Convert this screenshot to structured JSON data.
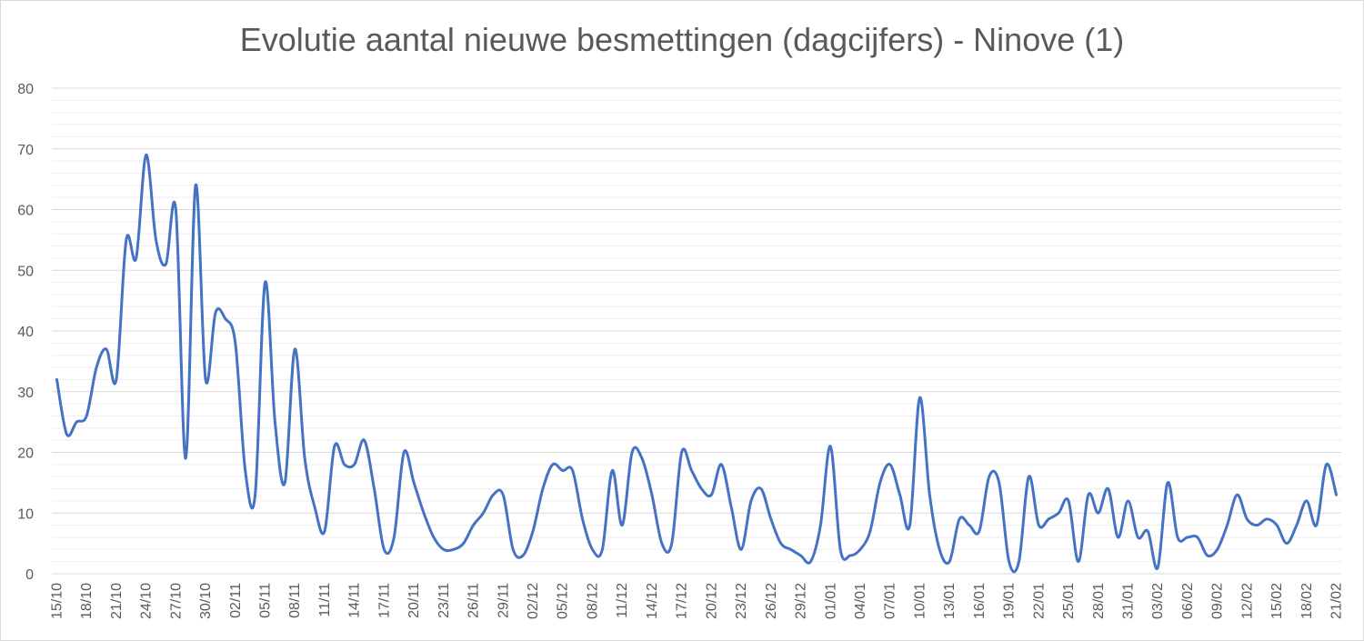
{
  "chart_data": {
    "type": "line",
    "title": "Evolutie aantal nieuwe besmettingen (dagcijfers) - Ninove (1)",
    "xlabel": "",
    "ylabel": "",
    "ylim": [
      0,
      80
    ],
    "yticks": [
      0,
      10,
      20,
      30,
      40,
      50,
      60,
      70,
      80
    ],
    "grid": true,
    "legend": "none",
    "line_color": "#4472c4",
    "x_tick_labels": [
      "15/10",
      "18/10",
      "21/10",
      "24/10",
      "27/10",
      "30/10",
      "02/11",
      "05/11",
      "08/11",
      "11/11",
      "14/11",
      "17/11",
      "20/11",
      "23/11",
      "26/11",
      "29/11",
      "02/12",
      "05/12",
      "08/12",
      "11/12",
      "14/12",
      "17/12",
      "20/12",
      "23/12",
      "26/12",
      "29/12",
      "01/01",
      "04/01",
      "07/01",
      "10/01",
      "13/01",
      "16/01",
      "19/01",
      "22/01",
      "25/01",
      "28/01",
      "31/01",
      "03/02",
      "06/02",
      "09/02",
      "12/02",
      "15/02",
      "18/02",
      "21/02"
    ],
    "series": [
      {
        "values": [
          32,
          23,
          25,
          26,
          34,
          37,
          32,
          55,
          52,
          69,
          55,
          51,
          60,
          19,
          64,
          32,
          43,
          42,
          38,
          17,
          13,
          48,
          25,
          15,
          37,
          19,
          11,
          7,
          21,
          18,
          18,
          22,
          14,
          4,
          6,
          20,
          15,
          10,
          6,
          4,
          4,
          5,
          8,
          10,
          13,
          13,
          4,
          3,
          7,
          14,
          18,
          17,
          17,
          9,
          4,
          4,
          17,
          8,
          20,
          19,
          13,
          5,
          5,
          20,
          17,
          14,
          13,
          18,
          11,
          4,
          12,
          14,
          9,
          5,
          4,
          3,
          2,
          8,
          21,
          4,
          3,
          4,
          7,
          15,
          18,
          13,
          8,
          29,
          13,
          4,
          2,
          9,
          8,
          7,
          16,
          15,
          2,
          2,
          16,
          8,
          9,
          10,
          12,
          2,
          13,
          10,
          14,
          6,
          12,
          6,
          7,
          1,
          15,
          6,
          6,
          6,
          3,
          4,
          8,
          13,
          9,
          8,
          9,
          8,
          5,
          8,
          12,
          8,
          18,
          13
        ]
      }
    ]
  }
}
